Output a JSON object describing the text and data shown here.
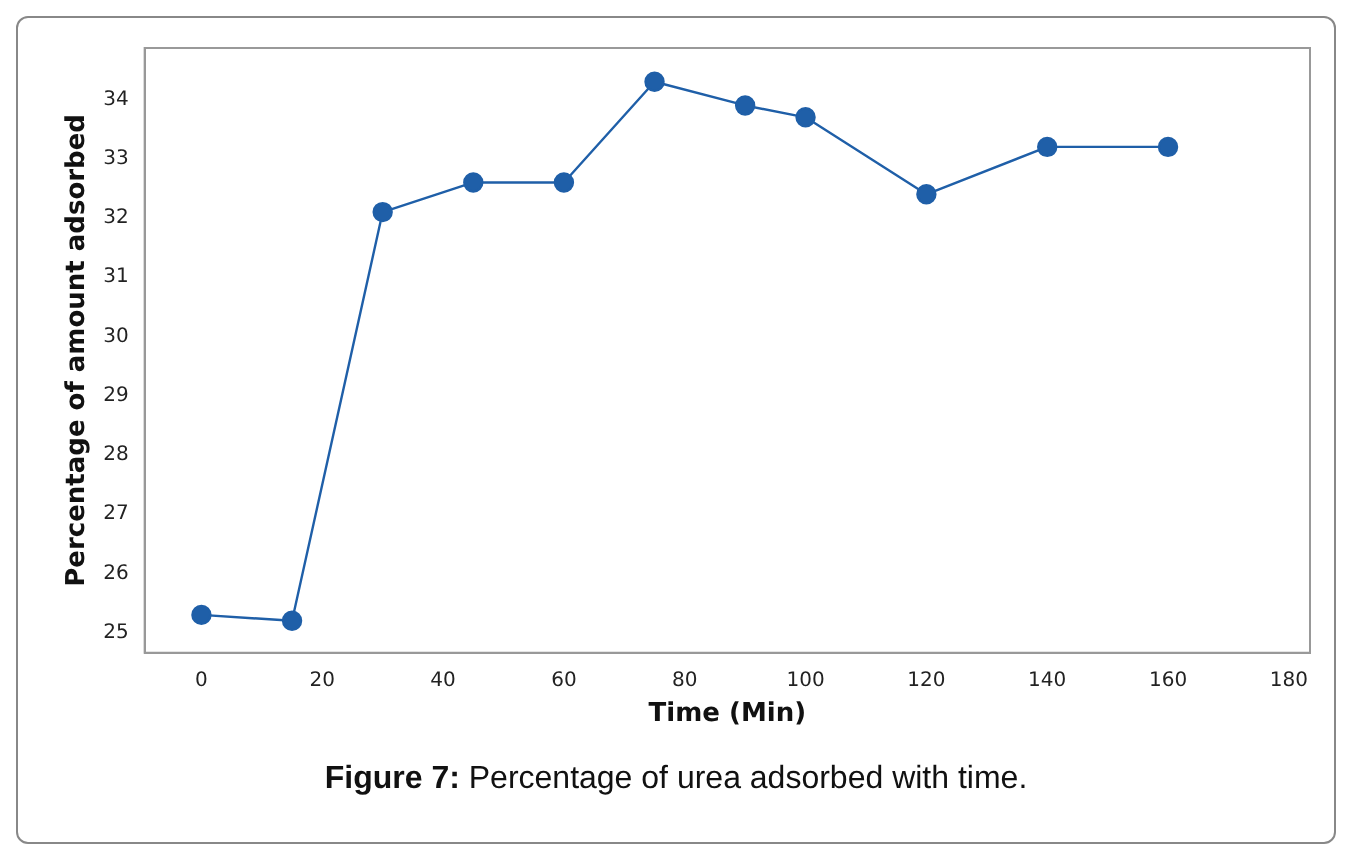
{
  "chart_data": {
    "type": "line",
    "xlabel": "Time (Min)",
    "ylabel": "Percentage of amount adsorbed",
    "x": [
      0,
      15,
      30,
      45,
      60,
      75,
      90,
      100,
      120,
      140,
      160
    ],
    "series": [
      {
        "color": "#1f5fa8",
        "values": [
          25.3,
          25.2,
          32.1,
          32.6,
          32.6,
          34.3,
          33.9,
          33.7,
          32.4,
          33.2,
          33.2
        ]
      }
    ],
    "xlim": [
      -9.4,
      183.5
    ],
    "xticks": [
      0,
      20,
      40,
      60,
      80,
      100,
      120,
      140,
      160,
      180
    ],
    "ylim": [
      24.66,
      34.87
    ],
    "yticks": [
      25,
      26,
      27,
      28,
      29,
      30,
      31,
      32,
      33,
      34
    ],
    "marker": "circle",
    "line_style": "solid",
    "grid": false,
    "legend": false,
    "annotations": [
      "Figure 7: Percentage of urea adsorbed with time."
    ]
  }
}
